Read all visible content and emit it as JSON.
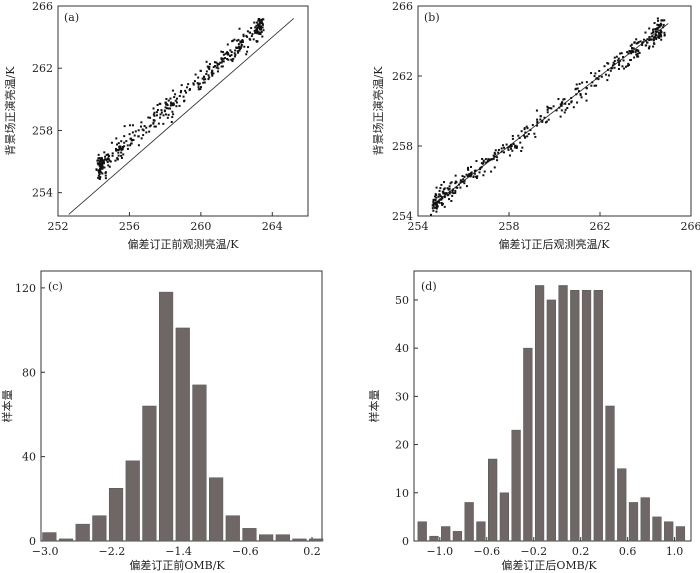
{
  "chart_data": [
    {
      "id": "a",
      "type": "scatter",
      "panel_label": "(a)",
      "xlabel": "偏差订正前观测亮温/K",
      "ylabel": "背景场正演亮温/K",
      "xlim": [
        252,
        266
      ],
      "ylim": [
        252.5,
        266
      ],
      "xticks": [
        252,
        256,
        260,
        264
      ],
      "xtick_labels": [
        "252",
        "256",
        "260",
        "264"
      ],
      "yticks": [
        254,
        258,
        262,
        266
      ],
      "ytick_labels": [
        "254",
        "258",
        "262",
        "266"
      ],
      "reference_line": "y=x",
      "cloud": {
        "x_range": [
          254.2,
          263.5
        ],
        "slope": 1.0,
        "offset": 1.35,
        "spread": 0.35
      },
      "n_points": 420
    },
    {
      "id": "b",
      "type": "scatter",
      "panel_label": "(b)",
      "xlabel": "偏差订正后观测亮温/K",
      "ylabel": "背景场正演亮温/K",
      "xlim": [
        254,
        266
      ],
      "ylim": [
        254,
        266
      ],
      "xticks": [
        254,
        258,
        262,
        266
      ],
      "xtick_labels": [
        "254",
        "258",
        "262",
        "266"
      ],
      "yticks": [
        254,
        258,
        262,
        266
      ],
      "ytick_labels": [
        "254",
        "258",
        "262",
        "266"
      ],
      "reference_line": "y=x",
      "cloud": {
        "x_range": [
          254.6,
          264.8
        ],
        "slope": 1.0,
        "offset": 0.0,
        "spread": 0.3
      },
      "n_points": 420
    },
    {
      "id": "c",
      "type": "bar",
      "panel_label": "(c)",
      "xlabel": "偏差订正前OMB/K",
      "ylabel": "样本量",
      "xlim": [
        -3.05,
        0.32
      ],
      "ylim": [
        0,
        128
      ],
      "xticks": [
        -3.0,
        -2.2,
        -1.4,
        -0.6,
        0.2
      ],
      "xtick_labels": [
        "−3.0",
        "−2.2",
        "−1.4",
        "−0.6",
        "0.2"
      ],
      "yticks": [
        0,
        40,
        80,
        120
      ],
      "ytick_labels": [
        "0",
        "40",
        "80",
        "120"
      ],
      "bin_width": 0.2,
      "bin_centers": [
        -2.95,
        -2.75,
        -2.55,
        -2.35,
        -2.15,
        -1.95,
        -1.75,
        -1.55,
        -1.35,
        -1.15,
        -0.95,
        -0.75,
        -0.55,
        -0.35,
        -0.15,
        0.05,
        0.25
      ],
      "values": [
        4,
        1,
        8,
        12,
        25,
        38,
        64,
        118,
        101,
        74,
        30,
        12,
        6,
        3,
        3,
        1,
        1
      ]
    },
    {
      "id": "d",
      "type": "bar",
      "panel_label": "(d)",
      "xlabel": "偏差订正后OMB/K",
      "ylabel": "样本量",
      "xlim": [
        -1.22,
        1.14
      ],
      "ylim": [
        0,
        56
      ],
      "xticks": [
        -1.0,
        -0.6,
        -0.2,
        0.2,
        0.6,
        1.0
      ],
      "xtick_labels": [
        "−1.0",
        "−0.6",
        "−0.2",
        "0.2",
        "0.6",
        "1.0"
      ],
      "yticks": [
        0,
        10,
        20,
        30,
        40,
        50
      ],
      "ytick_labels": [
        "0",
        "10",
        "20",
        "30",
        "40",
        "50"
      ],
      "bin_width": 0.1,
      "bin_centers": [
        -1.15,
        -1.05,
        -0.95,
        -0.85,
        -0.75,
        -0.65,
        -0.55,
        -0.45,
        -0.35,
        -0.25,
        -0.15,
        -0.05,
        0.05,
        0.15,
        0.25,
        0.35,
        0.45,
        0.55,
        0.65,
        0.75,
        0.85,
        0.95,
        1.05
      ],
      "values": [
        4,
        1,
        3,
        2,
        8,
        4,
        17,
        10,
        23,
        40,
        53,
        50,
        53,
        52,
        52,
        52,
        28,
        15,
        8,
        9,
        5,
        4,
        3
      ]
    }
  ]
}
